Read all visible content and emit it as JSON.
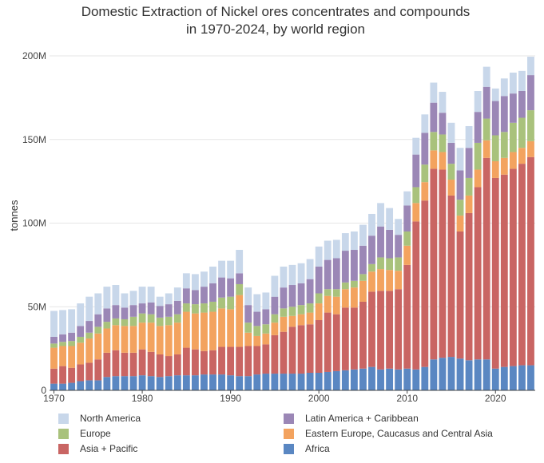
{
  "chart_data": {
    "type": "bar",
    "stacked": true,
    "title_lines": [
      "Domestic Extraction of Nickel ores concentrates and compounds",
      "in 1970-2024, by world region"
    ],
    "ylabel": "tonnes",
    "xlabel": "",
    "ylim": [
      0,
      200000000
    ],
    "y_ticks": [
      0,
      50000000,
      100000000,
      150000000,
      200000000
    ],
    "y_tick_labels": [
      "0",
      "50M",
      "100M",
      "150M",
      "200M"
    ],
    "x_ticks": [
      1970,
      1980,
      1990,
      2000,
      2010,
      2020
    ],
    "x_tick_labels": [
      "1970",
      "1980",
      "1990",
      "2000",
      "2010",
      "2020"
    ],
    "grid": "horizontal",
    "legend_placement": "bottom",
    "categories": [
      1970,
      1971,
      1972,
      1973,
      1974,
      1975,
      1976,
      1977,
      1978,
      1979,
      1980,
      1981,
      1982,
      1983,
      1984,
      1985,
      1986,
      1987,
      1988,
      1989,
      1990,
      1991,
      1992,
      1993,
      1994,
      1995,
      1996,
      1997,
      1998,
      1999,
      2000,
      2001,
      2002,
      2003,
      2004,
      2005,
      2006,
      2007,
      2008,
      2009,
      2010,
      2011,
      2012,
      2013,
      2014,
      2015,
      2016,
      2017,
      2018,
      2019,
      2020,
      2021,
      2022,
      2023,
      2024
    ],
    "series": [
      {
        "name": "Africa",
        "color": "#5a87c2",
        "values": [
          4.0,
          4.0,
          4.5,
          5.5,
          6.0,
          6.0,
          8.0,
          8.5,
          8.5,
          8.5,
          9.0,
          8.5,
          8.0,
          8.5,
          9.0,
          9.0,
          9.0,
          9.5,
          9.5,
          9.5,
          9.0,
          8.5,
          8.5,
          9.5,
          10.0,
          10.0,
          10.0,
          10.0,
          10.0,
          10.5,
          10.5,
          11.0,
          11.5,
          12.0,
          12.5,
          13.0,
          14.0,
          12.5,
          13.0,
          12.5,
          13.0,
          12.5,
          14.0,
          18.5,
          19.5,
          20.0,
          19.0,
          18.0,
          18.5,
          18.5,
          13.0,
          14.0,
          14.5,
          15.0,
          15.0
        ]
      },
      {
        "name": "Asia + Pacific",
        "color": "#c96563",
        "values": [
          9.0,
          10.5,
          9.0,
          10.0,
          10.5,
          12.5,
          14.5,
          15.5,
          14.0,
          14.0,
          15.5,
          14.5,
          13.5,
          12.0,
          12.5,
          16.5,
          15.5,
          14.0,
          14.5,
          16.5,
          17.0,
          17.5,
          18.0,
          17.0,
          17.5,
          23.0,
          25.0,
          28.0,
          29.0,
          29.0,
          31.5,
          35.5,
          34.0,
          37.5,
          37.0,
          40.0,
          45.0,
          47.0,
          46.5,
          48.0,
          62.0,
          88.5,
          99.5,
          114.0,
          112.5,
          96.5,
          76.0,
          88.0,
          103.0,
          120.5,
          114.0,
          115.0,
          118.0,
          120.5,
          124.5
        ]
      },
      {
        "name": "Eastern Europe, Caucasus and Central Asia",
        "color": "#f3a35f",
        "values": [
          12.5,
          12.0,
          13.0,
          13.0,
          14.5,
          15.5,
          14.5,
          15.0,
          16.0,
          16.0,
          16.0,
          17.5,
          17.0,
          18.5,
          19.0,
          21.5,
          21.5,
          23.0,
          23.0,
          23.0,
          22.5,
          31.0,
          8.0,
          6.0,
          6.5,
          7.5,
          9.0,
          6.5,
          6.5,
          7.0,
          10.0,
          10.0,
          10.5,
          11.0,
          12.0,
          12.5,
          12.0,
          13.0,
          12.5,
          11.0,
          11.5,
          11.0,
          11.0,
          11.0,
          10.5,
          9.5,
          9.5,
          10.5,
          10.5,
          10.5,
          10.0,
          10.0,
          10.0,
          9.5,
          9.5
        ]
      },
      {
        "name": "Europe",
        "color": "#a9c27c",
        "values": [
          2.5,
          2.5,
          3.0,
          3.5,
          3.5,
          4.0,
          4.0,
          4.0,
          4.0,
          5.5,
          5.5,
          5.0,
          5.0,
          5.0,
          5.0,
          5.0,
          5.5,
          5.5,
          6.0,
          6.5,
          7.5,
          6.5,
          6.0,
          6.0,
          5.5,
          5.0,
          5.0,
          5.5,
          5.5,
          5.5,
          6.0,
          4.0,
          4.5,
          4.0,
          4.0,
          4.0,
          4.5,
          7.0,
          7.0,
          8.0,
          8.5,
          9.5,
          10.5,
          11.0,
          10.5,
          9.5,
          9.5,
          10.5,
          16.0,
          13.0,
          15.5,
          15.5,
          17.5,
          18.0,
          18.5
        ]
      },
      {
        "name": "Latin America + Caribbean",
        "color": "#9b87b6",
        "values": [
          4.0,
          4.5,
          5.0,
          6.5,
          7.0,
          7.5,
          8.0,
          8.0,
          7.0,
          7.0,
          6.0,
          7.0,
          7.0,
          7.5,
          8.0,
          9.0,
          8.5,
          10.0,
          11.0,
          12.0,
          11.0,
          6.5,
          10.5,
          8.5,
          9.0,
          10.5,
          12.5,
          13.0,
          13.0,
          14.5,
          16.0,
          17.5,
          18.5,
          19.0,
          18.5,
          17.0,
          17.0,
          18.5,
          17.0,
          13.5,
          15.5,
          19.5,
          19.0,
          17.5,
          13.0,
          12.5,
          17.5,
          18.0,
          18.5,
          19.0,
          20.5,
          21.5,
          17.5,
          16.0,
          21.0
        ]
      },
      {
        "name": "North America",
        "color": "#c8d7ea",
        "values": [
          15.5,
          14.5,
          14.0,
          13.5,
          14.5,
          12.5,
          13.0,
          12.0,
          8.5,
          8.5,
          10.0,
          9.5,
          5.5,
          6.5,
          8.0,
          9.0,
          9.5,
          9.0,
          10.0,
          10.0,
          10.5,
          14.0,
          10.5,
          10.5,
          10.0,
          12.5,
          12.5,
          12.0,
          12.0,
          12.0,
          12.0,
          11.5,
          11.0,
          10.5,
          11.0,
          12.5,
          13.0,
          14.0,
          13.0,
          9.5,
          8.5,
          10.0,
          11.0,
          12.0,
          12.5,
          12.0,
          13.5,
          13.0,
          12.5,
          12.0,
          7.5,
          10.5,
          12.5,
          12.0,
          11.0
        ]
      }
    ]
  }
}
